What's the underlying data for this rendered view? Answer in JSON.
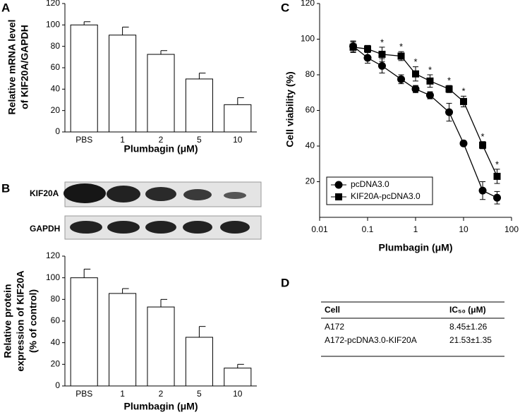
{
  "chart_data": [
    {
      "type": "bar",
      "panel": "A",
      "categories": [
        "PBS",
        "1",
        "2",
        "5",
        "10"
      ],
      "values": [
        100,
        90.5,
        72.5,
        49.5,
        25.5
      ],
      "errors": [
        3,
        7.5,
        3.5,
        5.5,
        6.5
      ],
      "color": "#ffffff",
      "ylim": [
        0,
        120
      ],
      "yticks": [
        0,
        20,
        40,
        60,
        80,
        100,
        120
      ],
      "x_label": "Plumbagin (μM)",
      "y_label": [
        "Relative mRNA level",
        "of KIF20A/GAPDH"
      ]
    },
    {
      "type": "bar",
      "categories": [
        "PBS",
        "1",
        "2",
        "5",
        "10"
      ],
      "values": [
        100,
        85.5,
        73,
        45,
        16.5
      ],
      "errors": [
        8,
        4.5,
        7,
        10,
        3.5
      ],
      "color": "#ffffff",
      "ylim": [
        0,
        120
      ],
      "yticks": [
        0,
        20,
        40,
        60,
        80,
        100,
        120
      ],
      "x_label": "Plumbagin (μM)",
      "y_label": [
        "Relative protein",
        "expression of KIF20A",
        "(% of control)"
      ]
    },
    {
      "type": "line",
      "panel": "C",
      "x_scale": "log",
      "x": [
        0.05,
        0.1,
        0.2,
        0.5,
        1,
        2,
        5,
        10,
        25,
        50
      ],
      "xlim": [
        0.01,
        100
      ],
      "xticks": [
        0.01,
        0.1,
        1,
        10,
        100
      ],
      "ylim": [
        0,
        120
      ],
      "yticks": [
        20,
        40,
        60,
        80,
        100,
        120
      ],
      "x_label": "Plumbagin (μM)",
      "y_label": [
        "Cell viability (%)"
      ],
      "legend": "lower left",
      "series": [
        {
          "name": "pcDNA3.0",
          "color": "#000000",
          "marker": "circle",
          "values": [
            96,
            89.5,
            85,
            77.5,
            72,
            68.5,
            59,
            41.5,
            15,
            11
          ],
          "errors": [
            3,
            3,
            4,
            2.5,
            2,
            2,
            5,
            1.5,
            5,
            3.5
          ]
        },
        {
          "name": "KIF20A-pcDNA3.0",
          "color": "#000000",
          "marker": "square",
          "values": [
            95.5,
            94.5,
            91.5,
            90.5,
            80.5,
            76.5,
            72,
            65,
            40.5,
            23
          ],
          "errors": [
            3,
            2,
            4,
            2.5,
            4,
            3.5,
            2,
            3,
            2,
            4
          ]
        }
      ],
      "annotations": [
        {
          "x": 0.2,
          "text": "*"
        },
        {
          "x": 0.5,
          "text": "*"
        },
        {
          "x": 1,
          "text": "*"
        },
        {
          "x": 2,
          "text": "*"
        },
        {
          "x": 5,
          "text": "*"
        },
        {
          "x": 10,
          "text": "*"
        },
        {
          "x": 25,
          "text": "*"
        },
        {
          "x": 50,
          "text": "*"
        }
      ]
    }
  ],
  "blot": {
    "panel": "B",
    "rows": [
      "KIF20A",
      "GAPDH"
    ]
  },
  "table": {
    "panel": "D",
    "header": [
      "Cell",
      "IC₅₀ (μM)"
    ],
    "rows": [
      [
        "A172",
        "8.45±1.26"
      ],
      [
        "A172-pcDNA3.0-KIF20A",
        "21.53±1.35"
      ]
    ]
  }
}
